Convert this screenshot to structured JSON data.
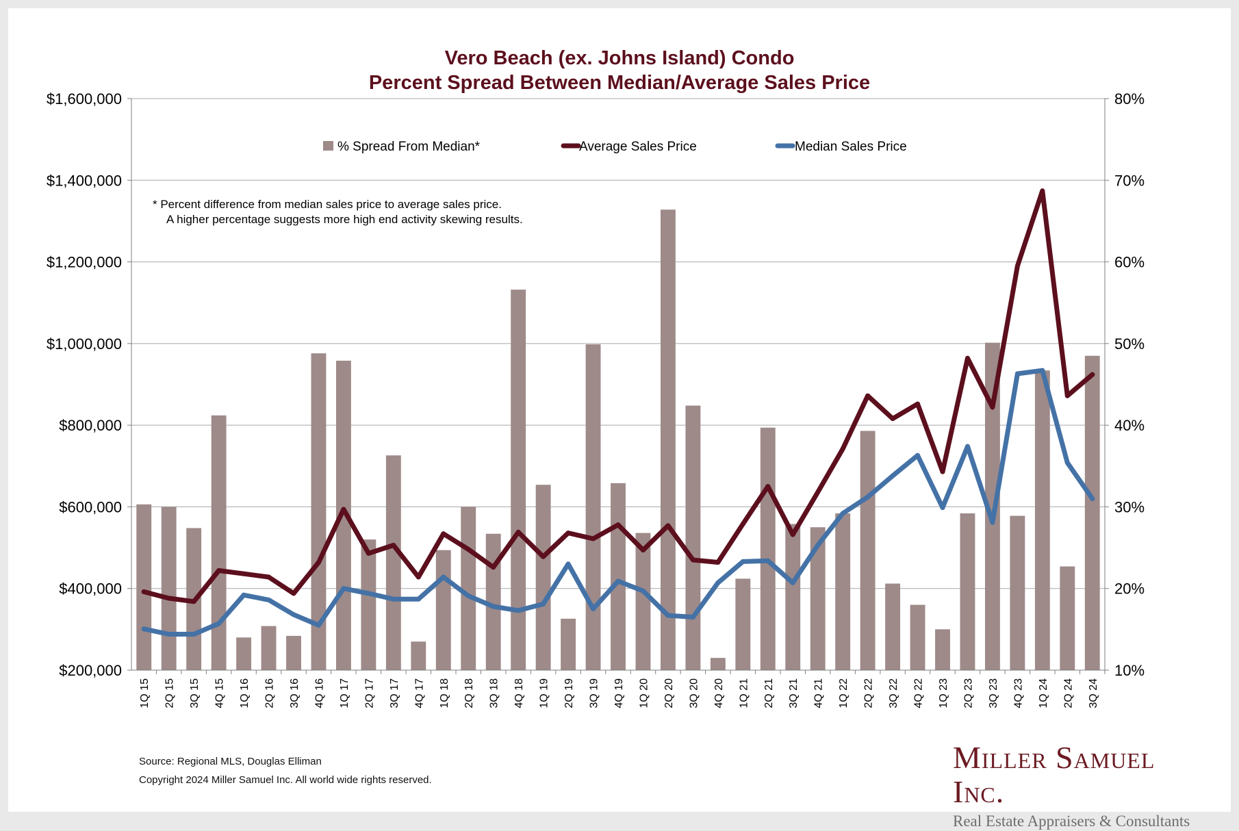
{
  "chart_data": {
    "type": "bar+line",
    "title": "Vero Beach (ex. Johns Island) Condo",
    "subtitle": "Percent Spread Between Median/Average Sales Price",
    "categories": [
      "1Q 15",
      "2Q 15",
      "3Q 15",
      "4Q 15",
      "1Q 16",
      "2Q 16",
      "3Q 16",
      "4Q 16",
      "1Q 17",
      "2Q 17",
      "3Q 17",
      "4Q 17",
      "1Q 18",
      "2Q 18",
      "3Q 18",
      "4Q 18",
      "1Q 19",
      "2Q 19",
      "3Q 19",
      "4Q 19",
      "1Q 20",
      "2Q 20",
      "3Q 20",
      "4Q 20",
      "1Q 21",
      "2Q 21",
      "3Q 21",
      "4Q 21",
      "1Q 22",
      "2Q 22",
      "3Q 22",
      "4Q 22",
      "1Q 23",
      "2Q 23",
      "3Q 23",
      "4Q 23",
      "1Q 24",
      "2Q 24",
      "3Q 24"
    ],
    "series": [
      {
        "name": "% Spread From Median*",
        "type": "bar",
        "axis": "right",
        "color": "#9e8a89",
        "values": [
          30.3,
          30.0,
          27.4,
          41.2,
          14.0,
          15.4,
          14.2,
          48.8,
          47.9,
          26.0,
          36.3,
          13.5,
          24.7,
          30.0,
          26.7,
          56.6,
          32.7,
          16.3,
          49.9,
          32.9,
          26.8,
          66.4,
          42.4,
          11.5,
          21.2,
          39.7,
          27.9,
          27.5,
          29.2,
          39.3,
          20.6,
          18.0,
          15.0,
          29.2,
          50.1,
          28.9,
          46.7,
          22.7,
          48.5
        ]
      },
      {
        "name": "Average Sales Price",
        "type": "line",
        "axis": "left",
        "color": "#5c0f1d",
        "values": [
          392000,
          376000,
          368000,
          444000,
          436000,
          428000,
          388000,
          464000,
          594000,
          486000,
          506000,
          428000,
          534000,
          496000,
          452000,
          538000,
          478000,
          536000,
          522000,
          556000,
          494000,
          554000,
          470000,
          464000,
          558000,
          650000,
          532000,
          636000,
          742000,
          872000,
          816000,
          852000,
          686000,
          964000,
          844000,
          1190000,
          1374000,
          872000,
          924000
        ]
      },
      {
        "name": "Median Sales Price",
        "type": "line",
        "axis": "left",
        "color": "#4472a6",
        "values": [
          301000,
          288000,
          288000,
          314000,
          384000,
          372000,
          336000,
          310000,
          400000,
          388000,
          374000,
          374000,
          428000,
          382000,
          356000,
          346000,
          362000,
          460000,
          350000,
          418000,
          394000,
          334000,
          330000,
          414000,
          466000,
          468000,
          414000,
          506000,
          584000,
          624000,
          676000,
          726000,
          598000,
          748000,
          562000,
          926000,
          934000,
          708000,
          620000
        ]
      }
    ],
    "y_left": {
      "min": 200000,
      "max": 1600000,
      "step": 200000,
      "ticks": [
        "$200,000",
        "$400,000",
        "$600,000",
        "$800,000",
        "$1,000,000",
        "$1,200,000",
        "$1,400,000",
        "$1,600,000"
      ]
    },
    "y_right": {
      "min": 10,
      "max": 80,
      "step": 10,
      "ticks": [
        "10%",
        "20%",
        "30%",
        "40%",
        "50%",
        "60%",
        "70%",
        "80%"
      ]
    },
    "legend": [
      "% Spread From Median*",
      "Average Sales Price",
      "Median Sales Price"
    ],
    "legend_position": "top-center",
    "grid": true,
    "annotation": [
      "*  Percent difference from median sales price to average sales price.",
      "A higher percentage suggests more high end activity skewing results."
    ]
  },
  "footer": {
    "source": "Source: Regional MLS, Douglas Elliman",
    "copyright": "Copyright 2024 Miller Samuel Inc.  All world wide rights reserved."
  },
  "logo": {
    "name": "Miller Samuel Inc.",
    "tagline": "Real Estate Appraisers & Consultants"
  },
  "colors": {
    "title": "#5c0f1d",
    "bar": "#9e8a89",
    "average_line": "#5c0f1d",
    "median_line": "#4472a6"
  }
}
